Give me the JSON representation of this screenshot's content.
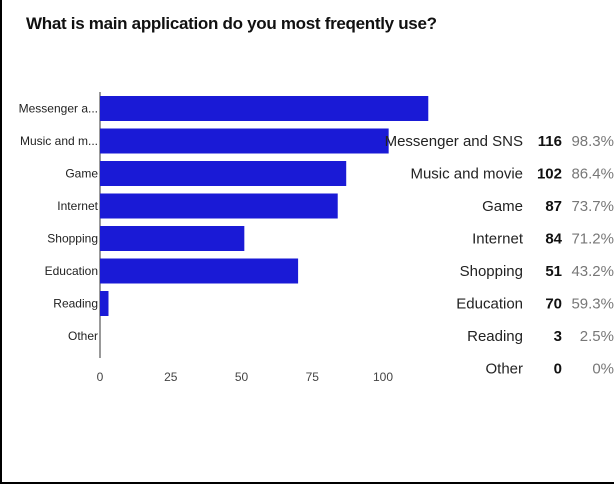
{
  "title": "What is main application do you most freqently use?",
  "chart_data": {
    "type": "bar",
    "orientation": "horizontal",
    "title": "What is main application do you most freqently use?",
    "categories": [
      "Messenger a...",
      "Music and m...",
      "Game",
      "Internet",
      "Shopping",
      "Education",
      "Reading",
      "Other"
    ],
    "values": [
      116,
      102,
      87,
      84,
      51,
      70,
      3,
      0
    ],
    "xlim": [
      0,
      116
    ],
    "xticks": [
      "0",
      "25",
      "50",
      "75",
      "100"
    ],
    "xtick_values": [
      0,
      25,
      50,
      75,
      100
    ],
    "grid": false,
    "bar_color": "#1a1ad6"
  },
  "table": {
    "rows": [
      {
        "label": "Messenger and SNS",
        "count": "116",
        "percent": "98.3%"
      },
      {
        "label": "Music and movie",
        "count": "102",
        "percent": "86.4%"
      },
      {
        "label": "Game",
        "count": "87",
        "percent": "73.7%"
      },
      {
        "label": "Internet",
        "count": "84",
        "percent": "71.2%"
      },
      {
        "label": "Shopping",
        "count": "51",
        "percent": "43.2%"
      },
      {
        "label": "Education",
        "count": "70",
        "percent": "59.3%"
      },
      {
        "label": "Reading",
        "count": "3",
        "percent": "2.5%"
      },
      {
        "label": "Other",
        "count": "0",
        "percent": "0%"
      }
    ]
  }
}
